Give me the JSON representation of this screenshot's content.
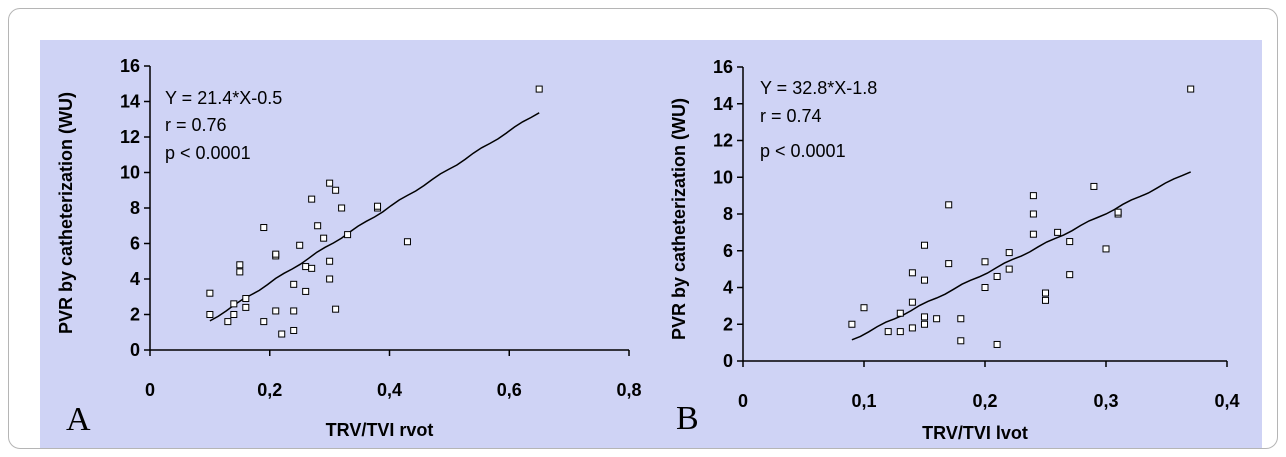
{
  "chart_data": [
    {
      "type": "scatter",
      "panel_label": "A",
      "xlabel": "TRV/TVI rvot",
      "ylabel": "PVR by catheterization (WU)",
      "xlim": [
        0,
        0.8
      ],
      "ylim": [
        0,
        16
      ],
      "x_ticks": [
        "0",
        "0,2",
        "0,4",
        "0,6",
        "0,8"
      ],
      "y_ticks": [
        "0",
        "2",
        "4",
        "6",
        "8",
        "10",
        "12",
        "14",
        "16"
      ],
      "annotations": [
        "Y = 21.4*X-0.5",
        "r = 0.76",
        "p < 0.0001"
      ],
      "fit": {
        "slope": 21.4,
        "intercept": -0.5,
        "x_range": [
          0.1,
          0.65
        ]
      },
      "points": [
        [
          0.1,
          3.2
        ],
        [
          0.1,
          2.0
        ],
        [
          0.13,
          1.6
        ],
        [
          0.14,
          2.6
        ],
        [
          0.14,
          2.0
        ],
        [
          0.15,
          4.8
        ],
        [
          0.15,
          4.4
        ],
        [
          0.16,
          2.9
        ],
        [
          0.16,
          2.4
        ],
        [
          0.19,
          6.9
        ],
        [
          0.19,
          1.6
        ],
        [
          0.21,
          5.3
        ],
        [
          0.21,
          5.4
        ],
        [
          0.21,
          2.2
        ],
        [
          0.22,
          0.9
        ],
        [
          0.24,
          3.7
        ],
        [
          0.24,
          2.2
        ],
        [
          0.24,
          1.1
        ],
        [
          0.25,
          5.9
        ],
        [
          0.26,
          4.7
        ],
        [
          0.26,
          3.3
        ],
        [
          0.27,
          8.5
        ],
        [
          0.27,
          4.6
        ],
        [
          0.28,
          7.0
        ],
        [
          0.29,
          6.3
        ],
        [
          0.3,
          9.4
        ],
        [
          0.3,
          5.0
        ],
        [
          0.3,
          4.0
        ],
        [
          0.31,
          9.0
        ],
        [
          0.31,
          2.3
        ],
        [
          0.32,
          8.0
        ],
        [
          0.33,
          6.5
        ],
        [
          0.38,
          8.0
        ],
        [
          0.38,
          8.1
        ],
        [
          0.43,
          6.1
        ],
        [
          0.65,
          14.7
        ]
      ]
    },
    {
      "type": "scatter",
      "panel_label": "B",
      "xlabel": "TRV/TVI lvot",
      "ylabel": "PVR by catheterization (WU)",
      "xlim": [
        0,
        0.4
      ],
      "ylim": [
        0,
        16
      ],
      "x_ticks": [
        "0",
        "0,1",
        "0,2",
        "0,3",
        "0,4"
      ],
      "y_ticks": [
        "0",
        "2",
        "4",
        "6",
        "8",
        "10",
        "12",
        "14",
        "16"
      ],
      "annotations": [
        "Y = 32.8*X-1.8",
        "r = 0.74",
        "p < 0.0001"
      ],
      "fit": {
        "slope": 32.8,
        "intercept": -1.8,
        "x_range": [
          0.09,
          0.37
        ]
      },
      "points": [
        [
          0.09,
          2.0
        ],
        [
          0.1,
          2.9
        ],
        [
          0.12,
          1.6
        ],
        [
          0.13,
          2.6
        ],
        [
          0.13,
          1.6
        ],
        [
          0.14,
          4.8
        ],
        [
          0.14,
          3.2
        ],
        [
          0.14,
          1.8
        ],
        [
          0.15,
          6.3
        ],
        [
          0.15,
          4.4
        ],
        [
          0.15,
          2.4
        ],
        [
          0.15,
          2.0
        ],
        [
          0.16,
          2.3
        ],
        [
          0.17,
          8.5
        ],
        [
          0.17,
          5.3
        ],
        [
          0.18,
          2.3
        ],
        [
          0.18,
          1.1
        ],
        [
          0.2,
          5.4
        ],
        [
          0.2,
          4.0
        ],
        [
          0.21,
          4.6
        ],
        [
          0.21,
          0.9
        ],
        [
          0.22,
          5.9
        ],
        [
          0.22,
          5.0
        ],
        [
          0.24,
          9.0
        ],
        [
          0.24,
          8.0
        ],
        [
          0.24,
          6.9
        ],
        [
          0.25,
          3.7
        ],
        [
          0.25,
          3.3
        ],
        [
          0.26,
          7.0
        ],
        [
          0.27,
          6.5
        ],
        [
          0.27,
          4.7
        ],
        [
          0.29,
          9.5
        ],
        [
          0.3,
          6.1
        ],
        [
          0.31,
          8.0
        ],
        [
          0.31,
          8.1
        ],
        [
          0.37,
          14.8
        ]
      ]
    }
  ]
}
